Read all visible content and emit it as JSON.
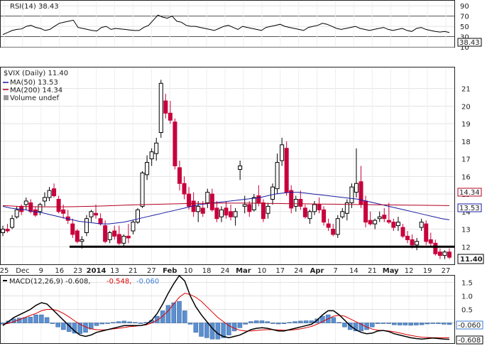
{
  "chart_data": [
    {
      "type": "line",
      "legend": "RSI(14) 38.43",
      "last_badge": "38.43",
      "ticks": [
        90,
        70,
        50,
        30,
        10
      ],
      "tick_labels": [
        "90",
        "70",
        "50",
        "30",
        "10"
      ],
      "reference_levels": [
        70,
        30
      ],
      "ylim": [
        10,
        100
      ],
      "values": [
        34,
        38,
        42,
        44,
        45,
        50,
        52,
        48,
        46,
        42,
        44,
        50,
        56,
        58,
        60,
        62,
        48,
        46,
        44,
        42,
        41,
        48,
        50,
        44,
        46,
        45,
        44,
        43,
        42,
        42,
        48,
        52,
        62,
        72,
        68,
        66,
        70,
        60,
        58,
        52,
        50,
        50,
        48,
        46,
        44,
        42,
        46,
        50,
        52,
        48,
        44,
        50,
        48,
        46,
        44,
        42,
        48,
        50,
        52,
        54,
        50,
        48,
        46,
        44,
        42,
        48,
        50,
        52,
        56,
        54,
        50,
        46,
        44,
        46,
        48,
        50,
        46,
        44,
        42,
        44,
        46,
        48,
        44,
        42,
        44,
        46,
        42,
        40,
        46,
        48,
        44,
        42,
        40,
        39,
        40,
        38
      ]
    },
    {
      "type": "candlestick",
      "legend": {
        "main": "$VIX (Daily) 11.40",
        "ma50": "MA(50) 13.53",
        "ma200": "MA(200) 14.34",
        "volume": "Volume undef"
      },
      "badges": {
        "ma200": "14.34",
        "ma50": "13.53",
        "last": "11.40"
      },
      "ticks": [
        21,
        20,
        19,
        18,
        17,
        16,
        15,
        14,
        13,
        12
      ],
      "tick_labels": [
        "21",
        "20",
        "19",
        "18",
        "17",
        "16",
        "15",
        "14",
        "13",
        "12"
      ],
      "support_level": 12,
      "x_labels": [
        "25",
        "Dec",
        "9",
        "16",
        "23",
        "2014",
        "13",
        "21",
        "27",
        "Feb",
        "10",
        "18",
        "24",
        "Mar",
        "10",
        "17",
        "24",
        "Apr",
        "7",
        "14",
        "21",
        "May",
        "12",
        "19",
        "27"
      ],
      "bold_labels": [
        "2014",
        "Feb",
        "Mar",
        "Apr",
        "May"
      ],
      "ma50": [
        14.3,
        14.2,
        14.15,
        14.1,
        14.0,
        13.95,
        13.85,
        13.75,
        13.65,
        13.55,
        13.45,
        13.4,
        13.35,
        13.3,
        13.3,
        13.35,
        13.4,
        13.5,
        13.6,
        13.7,
        13.8,
        13.9,
        14.0,
        14.1,
        14.2,
        14.3,
        14.4,
        14.45,
        14.5,
        14.55,
        14.6,
        14.65,
        14.7,
        14.75,
        14.8,
        14.9,
        15.0,
        15.05,
        15.1,
        15.1,
        15.05,
        15.0,
        14.95,
        14.9,
        14.85,
        14.8,
        14.75,
        14.7,
        14.6,
        14.5,
        14.4,
        14.3,
        14.2,
        14.1,
        14.0,
        13.9,
        13.8,
        13.7,
        13.6,
        13.53
      ],
      "ma200": [
        14.34,
        14.3,
        14.28,
        14.27,
        14.27,
        14.28,
        14.3,
        14.32,
        14.35,
        14.38,
        14.4,
        14.42,
        14.44,
        14.46,
        14.47,
        14.48,
        14.48,
        14.48,
        14.47,
        14.46,
        14.45,
        14.44,
        14.43,
        14.42,
        14.41,
        14.4,
        14.39,
        14.38,
        14.37,
        14.36,
        14.35,
        14.34
      ],
      "candles": [
        [
          12.8,
          13.2,
          12.6,
          13.0
        ],
        [
          13.0,
          13.3,
          12.8,
          12.9
        ],
        [
          13.1,
          13.8,
          13.0,
          13.6
        ],
        [
          13.7,
          14.3,
          13.6,
          14.1
        ],
        [
          14.3,
          14.4,
          13.8,
          14.0
        ],
        [
          14.4,
          14.8,
          14.1,
          14.6
        ],
        [
          14.5,
          14.7,
          13.9,
          14.0
        ],
        [
          14.1,
          14.3,
          13.7,
          13.8
        ],
        [
          14.0,
          14.5,
          13.8,
          14.4
        ],
        [
          14.6,
          15.1,
          14.3,
          14.8
        ],
        [
          14.8,
          15.4,
          14.6,
          15.2
        ],
        [
          15.3,
          15.6,
          14.8,
          14.9
        ],
        [
          14.7,
          14.9,
          13.9,
          14.0
        ],
        [
          14.1,
          14.4,
          13.6,
          13.9
        ],
        [
          13.7,
          14.1,
          13.3,
          13.5
        ],
        [
          13.3,
          13.6,
          12.5,
          12.7
        ],
        [
          12.9,
          13.0,
          12.2,
          12.3
        ],
        [
          12.3,
          12.6,
          11.9,
          12.4
        ],
        [
          12.8,
          13.8,
          12.6,
          13.6
        ],
        [
          13.7,
          14.1,
          13.4,
          14.0
        ],
        [
          13.9,
          14.4,
          13.6,
          13.8
        ],
        [
          13.6,
          13.9,
          13.2,
          13.3
        ],
        [
          13.2,
          13.5,
          12.2,
          12.3
        ],
        [
          12.4,
          12.9,
          12.2,
          12.8
        ],
        [
          12.9,
          13.2,
          12.4,
          12.6
        ],
        [
          12.7,
          13.2,
          12.1,
          12.2
        ],
        [
          12.2,
          12.7,
          12.0,
          12.6
        ],
        [
          12.6,
          13.3,
          12.2,
          12.5
        ],
        [
          12.9,
          13.5,
          12.7,
          13.4
        ],
        [
          13.4,
          14.2,
          13.3,
          14.1
        ],
        [
          14.3,
          16.3,
          14.2,
          16.2
        ],
        [
          16.1,
          17.2,
          15.8,
          16.8
        ],
        [
          17.0,
          17.6,
          16.6,
          17.4
        ],
        [
          17.3,
          18.2,
          16.9,
          17.9
        ],
        [
          18.5,
          21.5,
          18.2,
          21.3
        ],
        [
          20.3,
          20.7,
          19.3,
          19.6
        ],
        [
          19.6,
          20.3,
          19.0,
          19.2
        ],
        [
          19.1,
          19.3,
          16.4,
          16.6
        ],
        [
          16.5,
          16.9,
          15.2,
          15.6
        ],
        [
          15.6,
          16.0,
          14.7,
          15.0
        ],
        [
          15.0,
          15.4,
          14.1,
          14.3
        ],
        [
          14.6,
          15.1,
          13.7,
          14.0
        ],
        [
          14.0,
          14.6,
          13.4,
          14.3
        ],
        [
          14.2,
          14.6,
          13.7,
          13.9
        ],
        [
          14.5,
          15.3,
          14.2,
          15.1
        ],
        [
          15.0,
          15.3,
          14.0,
          14.1
        ],
        [
          14.2,
          14.6,
          13.4,
          13.6
        ],
        [
          13.7,
          14.3,
          13.4,
          14.1
        ],
        [
          14.2,
          14.6,
          13.6,
          13.8
        ],
        [
          14.0,
          14.4,
          13.5,
          13.7
        ],
        [
          13.7,
          14.2,
          13.2,
          14.0
        ],
        [
          16.4,
          16.9,
          15.8,
          16.6
        ],
        [
          14.3,
          14.9,
          13.9,
          14.4
        ],
        [
          14.4,
          14.6,
          13.7,
          14.0
        ],
        [
          14.1,
          15.0,
          14.0,
          14.8
        ],
        [
          14.9,
          15.5,
          14.3,
          14.5
        ],
        [
          14.5,
          14.7,
          13.4,
          13.6
        ],
        [
          13.9,
          14.5,
          13.6,
          14.3
        ],
        [
          14.7,
          15.6,
          14.4,
          15.4
        ],
        [
          15.3,
          17.3,
          15.0,
          16.8
        ],
        [
          16.9,
          18.2,
          16.6,
          17.8
        ],
        [
          17.6,
          18.0,
          14.9,
          15.1
        ],
        [
          15.2,
          15.5,
          13.9,
          14.2
        ],
        [
          14.3,
          14.9,
          14.0,
          14.7
        ],
        [
          14.7,
          15.2,
          14.1,
          14.3
        ],
        [
          14.2,
          14.4,
          13.6,
          13.7
        ],
        [
          13.6,
          14.1,
          13.3,
          14.0
        ],
        [
          14.0,
          14.6,
          13.8,
          14.4
        ],
        [
          14.4,
          14.8,
          13.9,
          14.1
        ],
        [
          14.1,
          14.3,
          13.2,
          13.4
        ],
        [
          13.3,
          13.6,
          12.9,
          13.1
        ],
        [
          13.0,
          13.3,
          12.6,
          12.7
        ],
        [
          12.7,
          13.8,
          12.5,
          13.6
        ],
        [
          13.7,
          14.2,
          13.6,
          14.0
        ],
        [
          13.9,
          14.7,
          13.5,
          14.5
        ],
        [
          14.5,
          15.6,
          14.2,
          15.4
        ],
        [
          15.1,
          17.6,
          14.8,
          15.6
        ],
        [
          15.7,
          16.6,
          14.2,
          14.4
        ],
        [
          14.6,
          14.9,
          13.1,
          13.4
        ],
        [
          13.5,
          14.0,
          13.2,
          13.3
        ],
        [
          13.3,
          13.6,
          13.0,
          13.5
        ],
        [
          13.6,
          14.0,
          13.4,
          13.7
        ],
        [
          13.8,
          14.2,
          13.4,
          13.6
        ],
        [
          13.5,
          14.5,
          13.3,
          13.4
        ],
        [
          13.4,
          13.6,
          12.9,
          13.1
        ],
        [
          13.2,
          13.7,
          12.9,
          13.4
        ],
        [
          13.1,
          13.3,
          12.5,
          12.6
        ],
        [
          12.6,
          12.9,
          12.2,
          12.4
        ],
        [
          12.4,
          12.7,
          11.9,
          12.1
        ],
        [
          12.1,
          12.5,
          11.8,
          12.3
        ],
        [
          13.1,
          13.6,
          12.9,
          13.4
        ],
        [
          13.3,
          13.5,
          12.1,
          12.3
        ],
        [
          12.4,
          12.8,
          12.0,
          12.2
        ],
        [
          12.2,
          12.4,
          11.5,
          11.6
        ],
        [
          11.7,
          11.9,
          11.3,
          11.5
        ],
        [
          11.5,
          11.8,
          11.3,
          11.7
        ],
        [
          11.7,
          11.9,
          11.3,
          11.4
        ]
      ]
    },
    {
      "type": "line",
      "legend": {
        "main": "MACD(12,26,9) -0.608,",
        "signal": "-0.548,",
        "histogram": "-0.060"
      },
      "badges": {
        "histogram": "-0.060",
        "macd": "-0.608"
      },
      "ticks": [
        1.5,
        1.0,
        0.5
      ],
      "tick_labels": [
        "1.5",
        "1.0",
        "0.5"
      ],
      "ylim": [
        -0.75,
        1.75
      ],
      "macd": [
        -0.1,
        0.05,
        0.2,
        0.3,
        0.4,
        0.5,
        0.65,
        0.75,
        0.7,
        0.5,
        0.3,
        0.1,
        -0.1,
        -0.3,
        -0.45,
        -0.5,
        -0.45,
        -0.35,
        -0.3,
        -0.25,
        -0.2,
        -0.15,
        -0.1,
        -0.1,
        -0.1,
        -0.1,
        -0.05,
        0.1,
        0.35,
        0.7,
        1.1,
        1.45,
        1.75,
        1.55,
        1.0,
        0.6,
        0.3,
        0.05,
        -0.2,
        -0.4,
        -0.5,
        -0.55,
        -0.5,
        -0.45,
        -0.35,
        -0.25,
        -0.2,
        -0.18,
        -0.2,
        -0.25,
        -0.3,
        -0.3,
        -0.25,
        -0.2,
        -0.15,
        -0.1,
        -0.05,
        0.1,
        0.3,
        0.45,
        0.45,
        0.3,
        0.1,
        -0.1,
        -0.25,
        -0.35,
        -0.4,
        -0.38,
        -0.3,
        -0.28,
        -0.32,
        -0.4,
        -0.45,
        -0.5,
        -0.55,
        -0.58,
        -0.6,
        -0.58,
        -0.56,
        -0.58,
        -0.6,
        -0.608
      ],
      "signal": [
        -0.05,
        -0.02,
        0.05,
        0.12,
        0.2,
        0.28,
        0.35,
        0.45,
        0.5,
        0.5,
        0.45,
        0.35,
        0.22,
        0.08,
        -0.05,
        -0.15,
        -0.22,
        -0.25,
        -0.26,
        -0.25,
        -0.22,
        -0.2,
        -0.17,
        -0.14,
        -0.12,
        -0.1,
        -0.07,
        0.0,
        0.1,
        0.25,
        0.45,
        0.7,
        0.95,
        1.1,
        1.05,
        0.95,
        0.8,
        0.6,
        0.4,
        0.2,
        0.05,
        -0.1,
        -0.2,
        -0.27,
        -0.3,
        -0.3,
        -0.28,
        -0.26,
        -0.25,
        -0.25,
        -0.26,
        -0.27,
        -0.27,
        -0.25,
        -0.22,
        -0.18,
        -0.13,
        -0.05,
        0.05,
        0.15,
        0.25,
        0.28,
        0.25,
        0.15,
        0.05,
        -0.05,
        -0.15,
        -0.23,
        -0.27,
        -0.28,
        -0.3,
        -0.33,
        -0.37,
        -0.42,
        -0.46,
        -0.5,
        -0.53,
        -0.54,
        -0.55,
        -0.55,
        -0.55,
        -0.548
      ],
      "histogram": [
        -0.05,
        0.07,
        0.15,
        0.18,
        0.2,
        0.22,
        0.3,
        0.3,
        0.2,
        0.0,
        -0.15,
        -0.25,
        -0.32,
        -0.38,
        -0.4,
        -0.35,
        -0.23,
        -0.1,
        -0.04,
        0.0,
        0.02,
        0.05,
        0.07,
        0.04,
        0.02,
        0.0,
        0.02,
        0.1,
        0.25,
        0.45,
        0.65,
        0.75,
        0.8,
        0.45,
        -0.05,
        -0.35,
        -0.5,
        -0.55,
        -0.6,
        -0.6,
        -0.55,
        -0.45,
        -0.3,
        -0.18,
        -0.05,
        0.05,
        0.08,
        0.08,
        0.05,
        0.0,
        -0.04,
        -0.03,
        0.02,
        0.05,
        0.07,
        0.08,
        0.08,
        0.15,
        0.25,
        0.3,
        0.2,
        0.02,
        -0.15,
        -0.25,
        -0.3,
        -0.3,
        -0.25,
        -0.15,
        -0.03,
        0.0,
        -0.02,
        -0.07,
        -0.08,
        -0.08,
        -0.09,
        -0.08,
        -0.07,
        -0.04,
        -0.01,
        -0.03,
        -0.05,
        -0.06
      ]
    }
  ]
}
